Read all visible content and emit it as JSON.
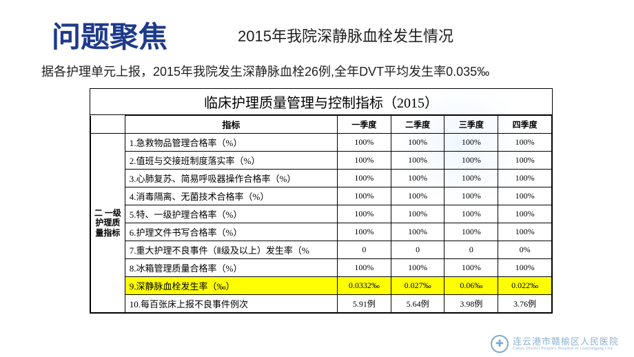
{
  "title_main": "问题聚焦",
  "title_sub": "2015年我院深静脉血栓发生情况",
  "intro": "据各护理单元上报，2015年我院发生深静脉血栓26例,全年DVT平均发生率0.035‰",
  "table": {
    "title": "临床护理质量管理与控制指标（2015）",
    "side_label": "二 一级护理质量指标",
    "header": [
      "指标",
      "一季度",
      "二季度",
      "三季度",
      "四季度"
    ],
    "rows": [
      {
        "label": "1.急救物品管理合格率（%）",
        "v": [
          "100%",
          "100%",
          "100%",
          "100%"
        ],
        "hl": false
      },
      {
        "label": "2.值班与交接班制度落实率（%）",
        "v": [
          "100%",
          "100%",
          "100%",
          "100%"
        ],
        "hl": false
      },
      {
        "label": "3.心肺复苏、简易呼吸器操作合格率（%）",
        "v": [
          "100%",
          "100%",
          "100%",
          "100%"
        ],
        "hl": false
      },
      {
        "label": "4.消毒隔离、无菌技术合格率（%）",
        "v": [
          "100%",
          "100%",
          "100%",
          "100%"
        ],
        "hl": false
      },
      {
        "label": "5.特、一级护理合格率（%）",
        "v": [
          "100%",
          "100%",
          "100%",
          "100%"
        ],
        "hl": false
      },
      {
        "label": "6.护理文件书写合格率（%）",
        "v": [
          "100%",
          "100%",
          "100%",
          "100%"
        ],
        "hl": false
      },
      {
        "label": "7.重大护理不良事件（Ⅱ级及以上）发生率（%",
        "v": [
          "0",
          "0",
          "0",
          "0%"
        ],
        "hl": false
      },
      {
        "label": "8.冰箱管理质量合格率（%）",
        "v": [
          "100%",
          "100%",
          "100%",
          "100%"
        ],
        "hl": false
      },
      {
        "label": "9.深静脉血栓发生率（‰）",
        "v": [
          "0.0332‰",
          "0.027‰",
          "0.06‰",
          "0.022‰"
        ],
        "hl": true
      },
      {
        "label": "10.每百张床上报不良事件例次",
        "v": [
          "5.91例",
          "5.64例",
          "3.98例",
          "3.76例"
        ],
        "hl": false
      }
    ]
  },
  "footer": {
    "zh": "连云港市赣榆区人民医院",
    "en": "Ganyu District People's Hospital of Lianyungang City"
  },
  "colors": {
    "title": "#1e3a8a",
    "highlight": "#ffff00",
    "border": "#000000",
    "footer": "#7fa9cc"
  }
}
